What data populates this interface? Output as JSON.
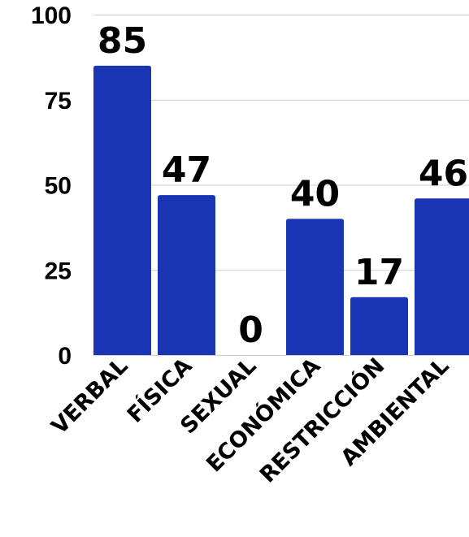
{
  "chart_data": {
    "type": "bar",
    "categories": [
      "VERBAL",
      "FÍSICA",
      "SEXUAL",
      "ECONÓMICA",
      "RESTRICCIÓN",
      "AMBIENTAL"
    ],
    "values": [
      85,
      47,
      0,
      40,
      17,
      46
    ],
    "data_labels": [
      "85",
      "47",
      "0",
      "40",
      "17",
      "46"
    ],
    "y_ticks": [
      "0",
      "25",
      "50",
      "75",
      "100"
    ],
    "ylim": [
      0,
      100
    ],
    "grid": true,
    "legend": "none",
    "bar_color": "#1a35b4",
    "title": "",
    "xlabel": "",
    "ylabel": ""
  }
}
